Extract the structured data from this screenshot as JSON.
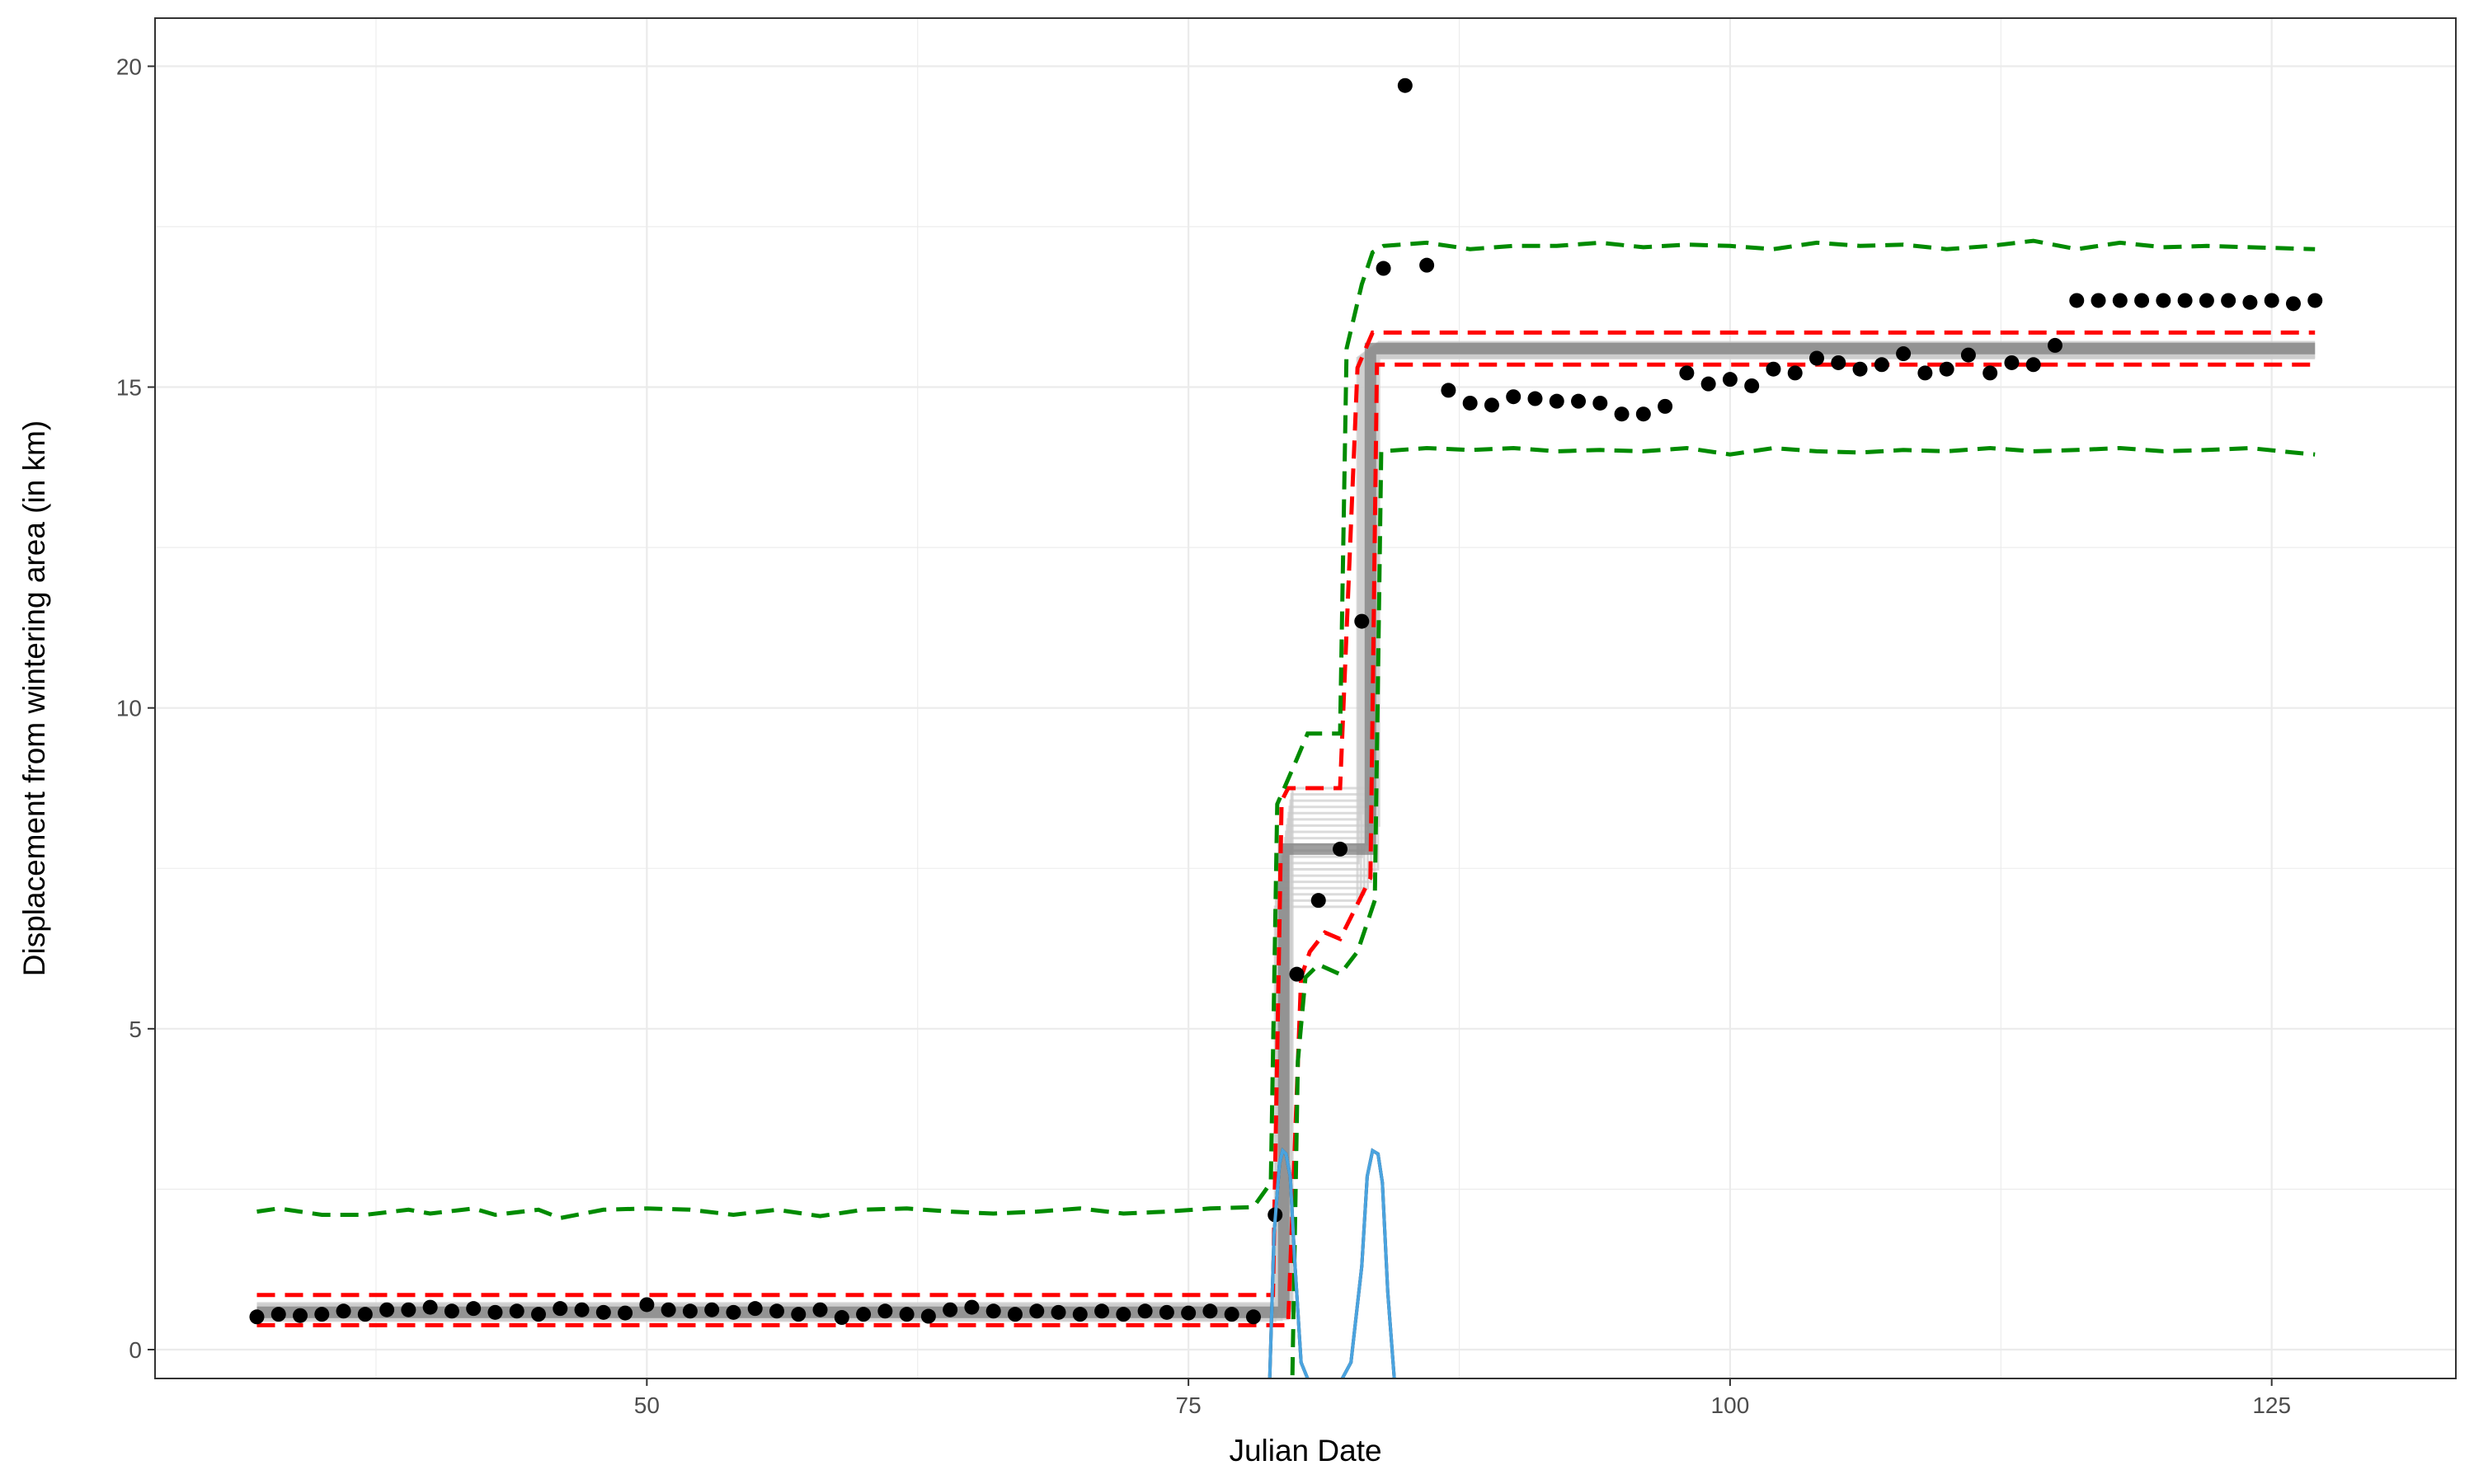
{
  "chart_data": {
    "type": "scatter",
    "title": "",
    "xlabel": "Julian Date",
    "ylabel": "Displacement from wintering area (in km)",
    "xlim": [
      27.3,
      133.5
    ],
    "ylim": [
      -0.45,
      20.75
    ],
    "x_ticks": [
      50,
      75,
      100,
      125
    ],
    "y_ticks": [
      0,
      5,
      10,
      15,
      20
    ],
    "grid": true,
    "legend": "none",
    "colors": {
      "points": "#000000",
      "fit_lines": "#7f7f7f",
      "fit_envelope": "#cccccc",
      "inner_bounds": "#ff0000",
      "outer_bounds": "#008b00",
      "transition_density": "#4aa3df",
      "grid": "#ebebeb",
      "panel_border": "#333333"
    },
    "points": {
      "x": [
        32,
        33,
        34,
        35,
        36,
        37,
        38,
        39,
        40,
        41,
        42,
        43,
        44,
        45,
        46,
        47,
        48,
        49,
        50,
        51,
        52,
        53,
        54,
        55,
        56,
        57,
        58,
        59,
        60,
        61,
        62,
        63,
        64,
        65,
        66,
        67,
        68,
        69,
        70,
        71,
        72,
        73,
        74,
        75,
        76,
        77,
        78,
        79,
        80,
        81,
        82,
        83,
        84,
        85,
        86,
        87,
        88,
        89,
        90,
        91,
        92,
        93,
        94,
        95,
        96,
        97,
        98,
        99,
        100,
        101,
        102,
        103,
        104,
        105,
        106,
        107,
        108,
        109,
        110,
        111,
        112,
        113,
        114,
        115,
        116,
        117,
        118,
        119,
        120,
        121,
        122,
        123,
        124,
        125,
        126,
        127
      ],
      "y": [
        0.51,
        0.55,
        0.53,
        0.55,
        0.6,
        0.55,
        0.62,
        0.62,
        0.66,
        0.6,
        0.64,
        0.58,
        0.6,
        0.55,
        0.64,
        0.62,
        0.58,
        0.57,
        0.7,
        0.62,
        0.6,
        0.62,
        0.58,
        0.64,
        0.6,
        0.55,
        0.62,
        0.5,
        0.55,
        0.6,
        0.55,
        0.52,
        0.62,
        0.66,
        0.6,
        0.55,
        0.6,
        0.58,
        0.55,
        0.6,
        0.55,
        0.6,
        0.58,
        0.57,
        0.6,
        0.55,
        0.51,
        2.1,
        5.85,
        7.0,
        7.8,
        11.35,
        16.85,
        19.7,
        16.9,
        14.95,
        14.75,
        14.72,
        14.85,
        14.82,
        14.78,
        14.78,
        14.75,
        14.58,
        14.58,
        14.7,
        15.22,
        15.05,
        15.12,
        15.02,
        15.28,
        15.22,
        15.45,
        15.38,
        15.28,
        15.35,
        15.52,
        15.22,
        15.28,
        15.5,
        15.22,
        15.38,
        15.35,
        15.65,
        16.35,
        16.35,
        16.35,
        16.35,
        16.35,
        16.35,
        16.35,
        16.35,
        16.32,
        16.35,
        16.3,
        16.35
      ]
    },
    "fit": {
      "levels": [
        0.58,
        7.8,
        15.6
      ],
      "jumps": [
        79.4,
        83.4
      ],
      "x_range": [
        32,
        127
      ],
      "replicate_count": 20,
      "level1_spread": [
        0.45,
        0.72
      ],
      "level2_spread": [
        6.9,
        8.75
      ],
      "level3_spread": [
        15.45,
        15.7
      ],
      "jump1_spread": [
        79.0,
        79.8
      ],
      "jump2_spread": [
        82.8,
        83.8
      ]
    },
    "inner_bounds": {
      "upper": [
        [
          32,
          0.85
        ],
        [
          78.9,
          0.85
        ],
        [
          79.3,
          8.55
        ],
        [
          79.6,
          8.75
        ],
        [
          81,
          8.75
        ],
        [
          82,
          8.75
        ],
        [
          82.8,
          15.3
        ],
        [
          83.5,
          15.85
        ],
        [
          127,
          15.85
        ]
      ],
      "lower": [
        [
          32,
          0.38
        ],
        [
          79.6,
          0.38
        ],
        [
          80.2,
          5.8
        ],
        [
          80.6,
          6.2
        ],
        [
          81.3,
          6.5
        ],
        [
          82,
          6.4
        ],
        [
          83.4,
          7.35
        ],
        [
          83.7,
          15.35
        ],
        [
          127,
          15.35
        ]
      ]
    },
    "outer_bounds": {
      "upper": [
        [
          32,
          2.15
        ],
        [
          33,
          2.2
        ],
        [
          35,
          2.1
        ],
        [
          37,
          2.1
        ],
        [
          39,
          2.18
        ],
        [
          40,
          2.12
        ],
        [
          42,
          2.2
        ],
        [
          43,
          2.1
        ],
        [
          45,
          2.18
        ],
        [
          46,
          2.05
        ],
        [
          48,
          2.18
        ],
        [
          50,
          2.2
        ],
        [
          52,
          2.18
        ],
        [
          54,
          2.1
        ],
        [
          56,
          2.18
        ],
        [
          58,
          2.08
        ],
        [
          60,
          2.18
        ],
        [
          62,
          2.2
        ],
        [
          64,
          2.15
        ],
        [
          66,
          2.12
        ],
        [
          68,
          2.15
        ],
        [
          70,
          2.2
        ],
        [
          72,
          2.12
        ],
        [
          74,
          2.15
        ],
        [
          76,
          2.2
        ],
        [
          78,
          2.22
        ],
        [
          78.8,
          2.6
        ],
        [
          79.1,
          8.5
        ],
        [
          80,
          9.2
        ],
        [
          80.5,
          9.6
        ],
        [
          82,
          9.6
        ],
        [
          82.3,
          15.6
        ],
        [
          83,
          16.6
        ],
        [
          83.5,
          17.1
        ],
        [
          84,
          17.2
        ],
        [
          86,
          17.25
        ],
        [
          88,
          17.15
        ],
        [
          90,
          17.2
        ],
        [
          92,
          17.2
        ],
        [
          94,
          17.25
        ],
        [
          96,
          17.18
        ],
        [
          98,
          17.22
        ],
        [
          100,
          17.2
        ],
        [
          102,
          17.15
        ],
        [
          104,
          17.25
        ],
        [
          106,
          17.2
        ],
        [
          108,
          17.22
        ],
        [
          110,
          17.15
        ],
        [
          112,
          17.2
        ],
        [
          114,
          17.28
        ],
        [
          116,
          17.15
        ],
        [
          118,
          17.25
        ],
        [
          120,
          17.18
        ],
        [
          122,
          17.2
        ],
        [
          124,
          17.18
        ],
        [
          127,
          17.15
        ]
      ],
      "lower": [
        [
          79.8,
          -0.4
        ],
        [
          80.05,
          4.5
        ],
        [
          80.4,
          5.8
        ],
        [
          81,
          6.0
        ],
        [
          82,
          5.85
        ],
        [
          82.8,
          6.2
        ],
        [
          83.6,
          7.0
        ],
        [
          83.9,
          14.0
        ],
        [
          86,
          14.05
        ],
        [
          88,
          14.02
        ],
        [
          90,
          14.05
        ],
        [
          92,
          14.0
        ],
        [
          94,
          14.02
        ],
        [
          96,
          14.0
        ],
        [
          98,
          14.05
        ],
        [
          100,
          13.95
        ],
        [
          102,
          14.05
        ],
        [
          104,
          14.0
        ],
        [
          106,
          13.98
        ],
        [
          108,
          14.02
        ],
        [
          110,
          14.0
        ],
        [
          112,
          14.05
        ],
        [
          114,
          14.0
        ],
        [
          116,
          14.02
        ],
        [
          118,
          14.05
        ],
        [
          120,
          14.0
        ],
        [
          122,
          14.02
        ],
        [
          124,
          14.05
        ],
        [
          126,
          13.98
        ],
        [
          127,
          13.95
        ]
      ]
    },
    "transition_density": [
      {
        "x": [
          78.75,
          78.95,
          79.2,
          79.35,
          79.5,
          79.7,
          79.9,
          80.2,
          80.5
        ],
        "y": [
          -0.45,
          1.8,
          2.9,
          3.1,
          3.05,
          2.7,
          1.4,
          -0.2,
          -0.45
        ]
      },
      {
        "x": [
          82.1,
          82.5,
          83.0,
          83.25,
          83.5,
          83.75,
          83.95,
          84.2,
          84.5
        ],
        "y": [
          -0.45,
          -0.2,
          1.3,
          2.7,
          3.1,
          3.05,
          2.6,
          0.9,
          -0.45
        ]
      }
    ]
  }
}
